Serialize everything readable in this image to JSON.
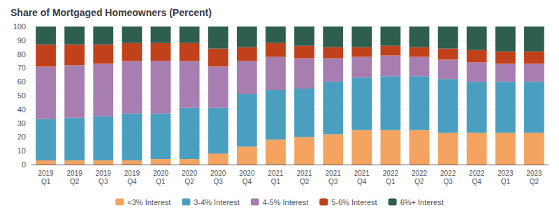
{
  "chart_data": {
    "type": "bar",
    "title": "Share of Mortgaged Homeowners (Percent)",
    "categories": [
      "2019\nQ1",
      "2019\nQ2",
      "2019\nQ3",
      "2019\nQ4",
      "2020\nQ1",
      "2020\nQ2",
      "2020\nQ3",
      "2020\nQ4",
      "2021\nQ1",
      "2021\nQ2",
      "2021\nQ3",
      "2021\nQ4",
      "2022\nQ1",
      "2022\nQ2",
      "2022\nQ3",
      "2022\nQ4",
      "2023\nQ1",
      "2023\nQ2"
    ],
    "series": [
      {
        "name": "<3% Interest",
        "color": "#F4A460",
        "values": [
          3,
          3,
          3,
          3,
          4,
          4,
          8,
          13,
          18,
          20,
          22,
          25,
          25,
          25,
          23,
          23,
          23,
          23
        ]
      },
      {
        "name": "3-4% Interest",
        "color": "#4A9FC0",
        "values": [
          30,
          31,
          32,
          34,
          33,
          37,
          33,
          38,
          36,
          35,
          38,
          38,
          39,
          39,
          39,
          37,
          37,
          37
        ]
      },
      {
        "name": "4-5% Interest",
        "color": "#A87DB0",
        "values": [
          38,
          38,
          38,
          38,
          38,
          34,
          30,
          24,
          24,
          22,
          17,
          15,
          15,
          14,
          14,
          14,
          13,
          13
        ]
      },
      {
        "name": "5-6% Interest",
        "color": "#C0411A",
        "values": [
          16,
          15,
          14,
          13,
          13,
          13,
          13,
          10,
          10,
          9,
          8,
          7,
          7,
          7,
          8,
          9,
          9,
          9
        ]
      },
      {
        "name": "6%+ Interest",
        "color": "#2D5E4E",
        "values": [
          13,
          13,
          13,
          12,
          12,
          12,
          16,
          15,
          12,
          14,
          15,
          15,
          14,
          15,
          16,
          17,
          18,
          18
        ]
      }
    ],
    "stacked": true,
    "ylim": [
      0,
      100
    ],
    "yticks": [
      0,
      10,
      20,
      30,
      40,
      50,
      60,
      70,
      80,
      90,
      100
    ],
    "grid": true,
    "legend": "bottom"
  }
}
